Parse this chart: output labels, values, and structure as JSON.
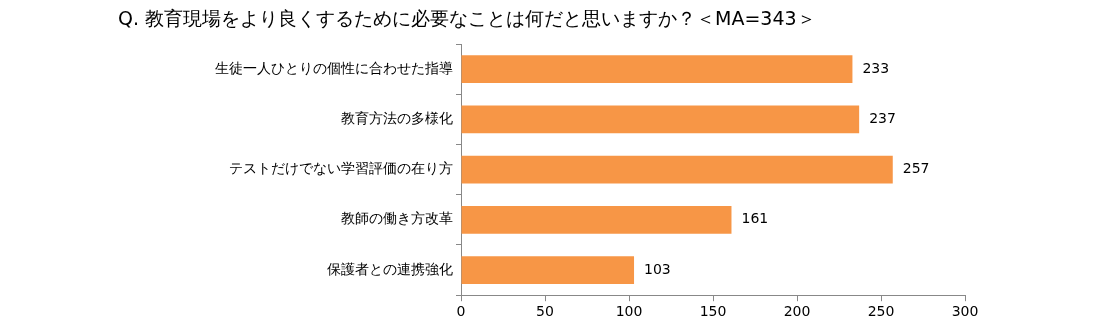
{
  "chart_data": {
    "type": "bar",
    "orientation": "horizontal",
    "title": "Q. 教育現場をより良くするために必要なことは何だと思いますか？＜MA=343＞",
    "categories": [
      "生徒一人ひとりの個性に合わせた指導",
      "教育方法の多様化",
      "テストだけでない学習評価の在り方",
      "教師の働き方改革",
      "保護者との連携強化"
    ],
    "values": [
      233,
      237,
      257,
      161,
      103
    ],
    "color": "#f79646",
    "xlim": [
      0,
      300
    ],
    "xticks": [
      0,
      50,
      100,
      150,
      200,
      250,
      300
    ],
    "grid": false,
    "data_labels": true
  }
}
